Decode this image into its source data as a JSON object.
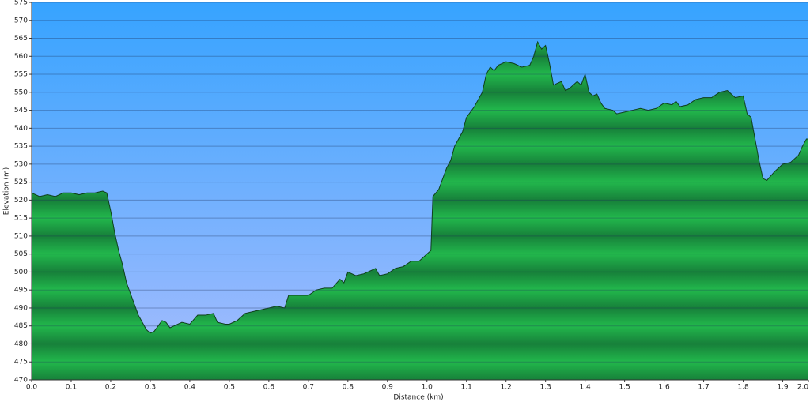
{
  "chart_data": {
    "type": "area",
    "xlabel": "Distance   (km)",
    "ylabel": "Elevation (m)",
    "color": "#1fa843",
    "line_color": "#10401c",
    "x": [
      0.0,
      0.02,
      0.04,
      0.06,
      0.08,
      0.1,
      0.12,
      0.14,
      0.16,
      0.18,
      0.19,
      0.2,
      0.21,
      0.22,
      0.23,
      0.24,
      0.25,
      0.26,
      0.27,
      0.28,
      0.29,
      0.3,
      0.31,
      0.32,
      0.33,
      0.34,
      0.35,
      0.36,
      0.38,
      0.4,
      0.42,
      0.44,
      0.46,
      0.47,
      0.49,
      0.5,
      0.52,
      0.54,
      0.56,
      0.58,
      0.6,
      0.62,
      0.64,
      0.65,
      0.7,
      0.72,
      0.74,
      0.76,
      0.78,
      0.79,
      0.8,
      0.82,
      0.84,
      0.86,
      0.87,
      0.88,
      0.9,
      0.92,
      0.94,
      0.96,
      0.98,
      1.0,
      1.01,
      1.015,
      1.03,
      1.04,
      1.05,
      1.06,
      1.07,
      1.08,
      1.09,
      1.1,
      1.12,
      1.14,
      1.15,
      1.16,
      1.17,
      1.18,
      1.2,
      1.22,
      1.24,
      1.26,
      1.27,
      1.28,
      1.29,
      1.3,
      1.31,
      1.32,
      1.34,
      1.35,
      1.36,
      1.38,
      1.39,
      1.4,
      1.41,
      1.42,
      1.43,
      1.44,
      1.45,
      1.47,
      1.48,
      1.5,
      1.52,
      1.54,
      1.56,
      1.58,
      1.6,
      1.62,
      1.63,
      1.64,
      1.66,
      1.68,
      1.7,
      1.72,
      1.74,
      1.76,
      1.78,
      1.8,
      1.81,
      1.82,
      1.83,
      1.84,
      1.85,
      1.86,
      1.88,
      1.9,
      1.92,
      1.94,
      1.95,
      1.96,
      1.965
    ],
    "values": [
      522,
      521,
      521.5,
      521,
      522,
      522,
      521.5,
      522,
      522,
      522.5,
      522,
      517,
      511,
      506,
      502,
      497,
      494,
      491,
      488,
      486,
      484,
      483,
      483.5,
      485,
      486.5,
      486,
      484.5,
      485,
      486,
      485.5,
      488,
      488,
      488.5,
      486,
      485.5,
      485.5,
      486.5,
      488.5,
      489,
      489.5,
      490,
      490.5,
      490,
      493.5,
      493.5,
      495,
      495.5,
      495.5,
      498,
      497,
      500,
      499,
      499.5,
      500.5,
      501,
      499,
      499.5,
      501,
      501.5,
      503,
      503,
      505,
      506,
      521,
      523,
      526,
      529,
      531,
      535,
      537,
      539,
      543,
      546,
      550,
      555,
      557,
      556,
      557.5,
      558.5,
      558,
      557,
      557.5,
      560,
      564,
      562,
      563,
      558,
      552,
      553,
      550.5,
      551,
      553,
      552,
      555,
      550,
      549,
      549.5,
      547,
      545.5,
      545,
      544,
      544.5,
      545,
      545.5,
      545,
      545.5,
      547,
      546.5,
      547.5,
      546,
      546.5,
      548,
      548.5,
      548.5,
      550,
      550.5,
      548.5,
      549,
      544,
      543,
      537,
      531,
      526,
      525.5,
      528,
      530,
      530.5,
      532.5,
      535,
      537,
      537
    ],
    "xlim": [
      0,
      1.965
    ],
    "xticks": [
      {
        "value": 0,
        "label": "0.0"
      },
      0.1,
      0.2,
      0.3,
      0.4,
      0.5,
      0.6,
      0.7,
      0.8,
      0.9,
      {
        "value": 1,
        "label": "1.0"
      },
      1.1,
      1.2,
      1.3,
      1.4,
      1.5,
      1.6,
      1.7,
      1.8,
      1.9,
      {
        "value": 2,
        "label": "2.0"
      }
    ],
    "ylim": [
      470,
      575
    ],
    "yticks": [
      470,
      475,
      480,
      485,
      490,
      495,
      500,
      505,
      510,
      515,
      520,
      525,
      530,
      535,
      540,
      545,
      550,
      555,
      560,
      565,
      570,
      575
    ],
    "grid": true
  }
}
